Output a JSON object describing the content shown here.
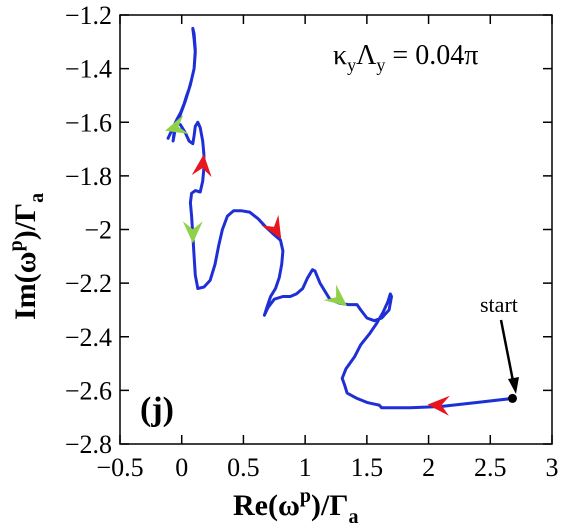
{
  "chart_data": {
    "type": "line",
    "xlim": [
      -0.5,
      3
    ],
    "ylim": [
      -2.8,
      -1.2
    ],
    "x_ticks": [
      -0.5,
      0,
      0.5,
      1,
      1.5,
      2,
      2.5,
      3
    ],
    "y_ticks": [
      -2.8,
      -2.6,
      -2.4,
      -2.2,
      -2,
      -1.8,
      -1.6,
      -1.4,
      -1.2
    ],
    "x_tick_labels": [
      "−0.5",
      "0",
      "0.5",
      "1",
      "1.5",
      "2",
      "2.5",
      "3"
    ],
    "y_tick_labels": [
      "−2.8",
      "−2.6",
      "−2.4",
      "−2.2",
      "−2",
      "−1.8",
      "−1.6",
      "−1.4",
      "−1.2"
    ],
    "xlabel_main": "Re(ω",
    "xlabel_sup": "p",
    "xlabel_mid": ")/Γ",
    "xlabel_sub": "a",
    "ylabel_main": "Im(ω",
    "ylabel_sup": "p",
    "ylabel_mid": ")/Γ",
    "ylabel_sub": "a",
    "annotation_main": "κ",
    "annotation_sub1": "y",
    "annotation_mid": "Λ",
    "annotation_sub2": "y",
    "annotation_rest": " = 0.04π",
    "panel_label": "(j)",
    "start_label": "start",
    "start_point": [
      2.68,
      -2.63
    ],
    "line_color": "#1f2fd6",
    "arrow_colors": [
      "#e8141e",
      "#8fd24a"
    ],
    "series": [
      {
        "values": [
          [
            2.68,
            -2.63
          ],
          [
            2.4,
            -2.645
          ],
          [
            2.1,
            -2.66
          ],
          [
            1.85,
            -2.665
          ],
          [
            1.62,
            -2.665
          ],
          [
            1.6,
            -2.655
          ],
          [
            1.55,
            -2.65
          ],
          [
            1.5,
            -2.645
          ],
          [
            1.42,
            -2.63
          ],
          [
            1.34,
            -2.61
          ],
          [
            1.32,
            -2.58
          ],
          [
            1.3,
            -2.555
          ],
          [
            1.33,
            -2.52
          ],
          [
            1.4,
            -2.475
          ],
          [
            1.45,
            -2.43
          ],
          [
            1.52,
            -2.39
          ],
          [
            1.58,
            -2.35
          ],
          [
            1.63,
            -2.31
          ],
          [
            1.67,
            -2.27
          ],
          [
            1.69,
            -2.24
          ],
          [
            1.7,
            -2.25
          ],
          [
            1.68,
            -2.3
          ],
          [
            1.62,
            -2.33
          ],
          [
            1.56,
            -2.34
          ],
          [
            1.5,
            -2.33
          ],
          [
            1.45,
            -2.3
          ],
          [
            1.42,
            -2.28
          ],
          [
            1.35,
            -2.28
          ],
          [
            1.28,
            -2.275
          ],
          [
            1.2,
            -2.26
          ],
          [
            1.12,
            -2.2
          ],
          [
            1.08,
            -2.155
          ],
          [
            1.06,
            -2.15
          ],
          [
            1.02,
            -2.18
          ],
          [
            0.98,
            -2.22
          ],
          [
            0.93,
            -2.24
          ],
          [
            0.88,
            -2.25
          ],
          [
            0.82,
            -2.25
          ],
          [
            0.75,
            -2.26
          ],
          [
            0.7,
            -2.29
          ],
          [
            0.67,
            -2.32
          ],
          [
            0.69,
            -2.29
          ],
          [
            0.72,
            -2.25
          ],
          [
            0.76,
            -2.22
          ],
          [
            0.79,
            -2.18
          ],
          [
            0.81,
            -2.13
          ],
          [
            0.82,
            -2.08
          ],
          [
            0.8,
            -2.04
          ],
          [
            0.75,
            -2.02
          ],
          [
            0.68,
            -1.99
          ],
          [
            0.62,
            -1.96
          ],
          [
            0.55,
            -1.935
          ],
          [
            0.48,
            -1.93
          ],
          [
            0.42,
            -1.93
          ],
          [
            0.37,
            -1.95
          ],
          [
            0.33,
            -2.0
          ],
          [
            0.3,
            -2.06
          ],
          [
            0.27,
            -2.13
          ],
          [
            0.23,
            -2.19
          ],
          [
            0.18,
            -2.215
          ],
          [
            0.13,
            -2.22
          ],
          [
            0.11,
            -2.17
          ],
          [
            0.1,
            -2.1
          ],
          [
            0.09,
            -2.02
          ],
          [
            0.08,
            -1.95
          ],
          [
            0.07,
            -1.9
          ],
          [
            0.08,
            -1.865
          ],
          [
            0.11,
            -1.855
          ],
          [
            0.15,
            -1.86
          ],
          [
            0.17,
            -1.82
          ],
          [
            0.18,
            -1.77
          ],
          [
            0.18,
            -1.72
          ],
          [
            0.17,
            -1.67
          ],
          [
            0.15,
            -1.62
          ],
          [
            0.13,
            -1.6
          ],
          [
            0.11,
            -1.615
          ],
          [
            0.1,
            -1.65
          ],
          [
            0.09,
            -1.68
          ],
          [
            0.06,
            -1.67
          ],
          [
            0.03,
            -1.64
          ],
          [
            -0.01,
            -1.61
          ],
          [
            -0.04,
            -1.6
          ],
          [
            -0.06,
            -1.63
          ],
          [
            -0.07,
            -1.67
          ],
          [
            -0.05,
            -1.62
          ],
          [
            -0.01,
            -1.57
          ],
          [
            0.03,
            -1.52
          ],
          [
            0.07,
            -1.46
          ],
          [
            0.1,
            -1.4
          ],
          [
            0.11,
            -1.34
          ],
          [
            0.1,
            -1.29
          ],
          [
            0.09,
            -1.25
          ],
          [
            0.1,
            -1.27
          ],
          [
            0.11,
            -1.33
          ],
          [
            0.1,
            -1.4
          ],
          [
            0.08,
            -1.44
          ],
          [
            0.06,
            -1.475
          ],
          [
            0.04,
            -1.5
          ],
          [
            0.02,
            -1.53
          ],
          [
            -0.01,
            -1.565
          ],
          [
            -0.04,
            -1.59
          ],
          [
            -0.08,
            -1.63
          ],
          [
            -0.11,
            -1.66
          ]
        ]
      }
    ],
    "direction_markers": [
      {
        "x": 2.08,
        "y": -2.655,
        "dx": -1,
        "dy": 0.05,
        "color": "#e8141e"
      },
      {
        "x": 1.27,
        "y": -2.26,
        "dx": 1,
        "dy": -0.8,
        "color": "#8fd24a"
      },
      {
        "x": 0.76,
        "y": -2.0,
        "dx": 0.6,
        "dy": -1,
        "color": "#e8141e"
      },
      {
        "x": 0.09,
        "y": -2.01,
        "dx": 0,
        "dy": -1,
        "color": "#8fd24a"
      },
      {
        "x": 0.17,
        "y": -1.76,
        "dx": 0.1,
        "dy": 1,
        "color": "#e8141e"
      },
      {
        "x": -0.05,
        "y": -1.62,
        "dx": -1,
        "dy": -0.3,
        "color": "#8fd24a"
      }
    ]
  }
}
